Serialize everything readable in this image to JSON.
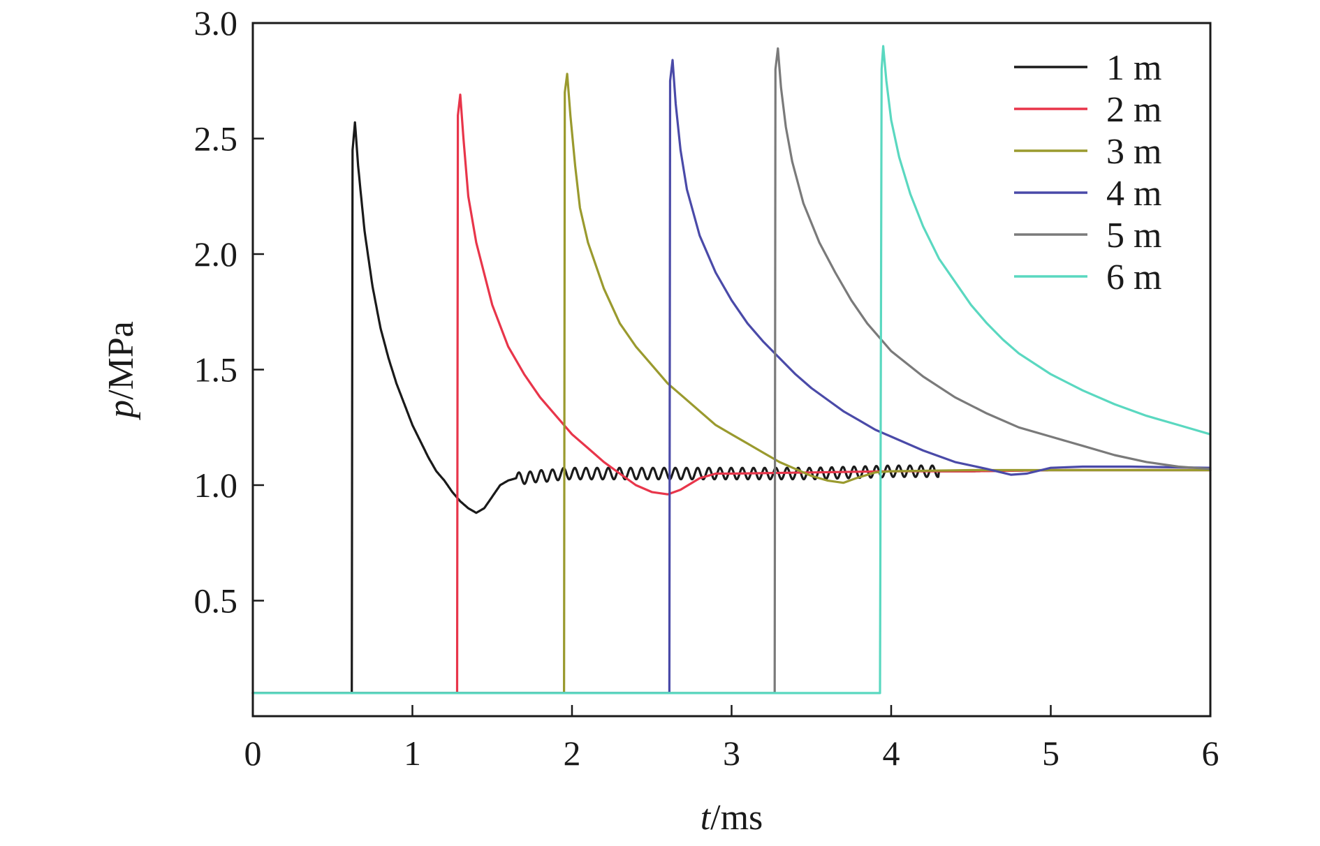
{
  "chart_data": {
    "type": "line",
    "xlabel": {
      "italic": "t",
      "rest": "/ms"
    },
    "ylabel": {
      "italic": "p",
      "rest": "/MPa"
    },
    "xlim": [
      0,
      6
    ],
    "ylim": [
      0,
      3.0
    ],
    "x_ticks": [
      0,
      1,
      2,
      3,
      4,
      5,
      6
    ],
    "x_tick_labels": [
      "0",
      "1",
      "2",
      "3",
      "4",
      "5",
      "6"
    ],
    "y_ticks": [
      0.5,
      1.0,
      1.5,
      2.0,
      2.5,
      3.0
    ],
    "y_tick_labels": [
      "0.5",
      "1.0",
      "1.5",
      "2.0",
      "2.5",
      "3.0"
    ],
    "grid": false,
    "legend_position": "top-right",
    "series": [
      {
        "name": "1 m",
        "color": "#1a1a1a",
        "points": [
          [
            0,
            0.1
          ],
          [
            0.62,
            0.1
          ],
          [
            0.625,
            2.45
          ],
          [
            0.64,
            2.57
          ],
          [
            0.66,
            2.38
          ],
          [
            0.7,
            2.1
          ],
          [
            0.75,
            1.86
          ],
          [
            0.8,
            1.68
          ],
          [
            0.85,
            1.55
          ],
          [
            0.9,
            1.44
          ],
          [
            0.95,
            1.35
          ],
          [
            1.0,
            1.26
          ],
          [
            1.05,
            1.19
          ],
          [
            1.1,
            1.12
          ],
          [
            1.15,
            1.06
          ],
          [
            1.2,
            1.02
          ],
          [
            1.25,
            0.97
          ],
          [
            1.3,
            0.93
          ],
          [
            1.35,
            0.9
          ],
          [
            1.4,
            0.88
          ],
          [
            1.45,
            0.9
          ],
          [
            1.5,
            0.95
          ],
          [
            1.55,
            1.0
          ],
          [
            1.6,
            1.02
          ],
          [
            1.65,
            1.03
          ],
          [
            1.7,
            1.03
          ],
          [
            1.75,
            1.035
          ],
          [
            1.8,
            1.04
          ],
          [
            1.85,
            1.04
          ],
          [
            1.9,
            1.045
          ],
          [
            1.95,
            1.05
          ],
          [
            2.0,
            1.05
          ],
          [
            2.1,
            1.05
          ],
          [
            2.2,
            1.05
          ],
          [
            2.5,
            1.05
          ],
          [
            3.0,
            1.05
          ],
          [
            3.5,
            1.05
          ],
          [
            4.0,
            1.06
          ],
          [
            4.5,
            1.06
          ],
          [
            5.0,
            1.065
          ],
          [
            5.5,
            1.065
          ],
          [
            6.0,
            1.065
          ]
        ],
        "wiggle": {
          "start": 1.65,
          "end": 4.3,
          "period": 0.07,
          "amplitude": 0.025
        }
      },
      {
        "name": "2 m",
        "color": "#e8354a",
        "points": [
          [
            0,
            0.1
          ],
          [
            1.28,
            0.1
          ],
          [
            1.285,
            2.6
          ],
          [
            1.3,
            2.69
          ],
          [
            1.32,
            2.5
          ],
          [
            1.35,
            2.25
          ],
          [
            1.4,
            2.05
          ],
          [
            1.5,
            1.78
          ],
          [
            1.6,
            1.6
          ],
          [
            1.7,
            1.48
          ],
          [
            1.8,
            1.38
          ],
          [
            1.9,
            1.3
          ],
          [
            2.0,
            1.22
          ],
          [
            2.1,
            1.16
          ],
          [
            2.2,
            1.1
          ],
          [
            2.3,
            1.05
          ],
          [
            2.4,
            1.0
          ],
          [
            2.5,
            0.97
          ],
          [
            2.6,
            0.96
          ],
          [
            2.68,
            0.98
          ],
          [
            2.8,
            1.03
          ],
          [
            2.9,
            1.05
          ],
          [
            3.0,
            1.05
          ],
          [
            3.5,
            1.055
          ],
          [
            4.0,
            1.06
          ],
          [
            4.5,
            1.06
          ],
          [
            5.0,
            1.065
          ],
          [
            5.5,
            1.065
          ],
          [
            6.0,
            1.065
          ]
        ]
      },
      {
        "name": "3 m",
        "color": "#9a9a2e",
        "points": [
          [
            0,
            0.1
          ],
          [
            1.95,
            0.1
          ],
          [
            1.955,
            2.7
          ],
          [
            1.97,
            2.78
          ],
          [
            1.99,
            2.6
          ],
          [
            2.02,
            2.38
          ],
          [
            2.05,
            2.2
          ],
          [
            2.1,
            2.05
          ],
          [
            2.2,
            1.85
          ],
          [
            2.3,
            1.7
          ],
          [
            2.4,
            1.6
          ],
          [
            2.5,
            1.52
          ],
          [
            2.6,
            1.44
          ],
          [
            2.7,
            1.38
          ],
          [
            2.8,
            1.32
          ],
          [
            2.9,
            1.26
          ],
          [
            3.0,
            1.22
          ],
          [
            3.1,
            1.18
          ],
          [
            3.2,
            1.14
          ],
          [
            3.3,
            1.1
          ],
          [
            3.4,
            1.07
          ],
          [
            3.5,
            1.04
          ],
          [
            3.6,
            1.02
          ],
          [
            3.7,
            1.01
          ],
          [
            3.78,
            1.03
          ],
          [
            3.9,
            1.055
          ],
          [
            4.0,
            1.06
          ],
          [
            4.5,
            1.065
          ],
          [
            5.0,
            1.065
          ],
          [
            5.5,
            1.065
          ],
          [
            6.0,
            1.065
          ]
        ]
      },
      {
        "name": "4 m",
        "color": "#4a4aa8",
        "points": [
          [
            0,
            0.1
          ],
          [
            2.61,
            0.1
          ],
          [
            2.615,
            2.75
          ],
          [
            2.63,
            2.84
          ],
          [
            2.65,
            2.65
          ],
          [
            2.68,
            2.45
          ],
          [
            2.72,
            2.28
          ],
          [
            2.8,
            2.08
          ],
          [
            2.9,
            1.92
          ],
          [
            3.0,
            1.8
          ],
          [
            3.1,
            1.7
          ],
          [
            3.2,
            1.62
          ],
          [
            3.3,
            1.55
          ],
          [
            3.4,
            1.48
          ],
          [
            3.5,
            1.42
          ],
          [
            3.6,
            1.37
          ],
          [
            3.7,
            1.32
          ],
          [
            3.8,
            1.28
          ],
          [
            3.9,
            1.24
          ],
          [
            4.0,
            1.21
          ],
          [
            4.2,
            1.15
          ],
          [
            4.4,
            1.1
          ],
          [
            4.6,
            1.07
          ],
          [
            4.75,
            1.045
          ],
          [
            4.85,
            1.05
          ],
          [
            5.0,
            1.075
          ],
          [
            5.2,
            1.08
          ],
          [
            5.5,
            1.08
          ],
          [
            6.0,
            1.075
          ]
        ]
      },
      {
        "name": "5 m",
        "color": "#7a7a7a",
        "points": [
          [
            0,
            0.1
          ],
          [
            3.27,
            0.1
          ],
          [
            3.275,
            2.8
          ],
          [
            3.29,
            2.89
          ],
          [
            3.31,
            2.72
          ],
          [
            3.34,
            2.55
          ],
          [
            3.38,
            2.4
          ],
          [
            3.45,
            2.22
          ],
          [
            3.55,
            2.05
          ],
          [
            3.65,
            1.92
          ],
          [
            3.75,
            1.8
          ],
          [
            3.85,
            1.7
          ],
          [
            4.0,
            1.58
          ],
          [
            4.2,
            1.47
          ],
          [
            4.4,
            1.38
          ],
          [
            4.6,
            1.31
          ],
          [
            4.8,
            1.25
          ],
          [
            5.0,
            1.21
          ],
          [
            5.2,
            1.17
          ],
          [
            5.4,
            1.13
          ],
          [
            5.6,
            1.1
          ],
          [
            5.8,
            1.08
          ],
          [
            6.0,
            1.07
          ]
        ]
      },
      {
        "name": "6 m",
        "color": "#5ad8c0",
        "points": [
          [
            0,
            0.1
          ],
          [
            3.93,
            0.1
          ],
          [
            3.94,
            2.8
          ],
          [
            3.95,
            2.9
          ],
          [
            3.97,
            2.75
          ],
          [
            4.0,
            2.58
          ],
          [
            4.05,
            2.42
          ],
          [
            4.12,
            2.26
          ],
          [
            4.2,
            2.12
          ],
          [
            4.3,
            1.98
          ],
          [
            4.4,
            1.88
          ],
          [
            4.5,
            1.78
          ],
          [
            4.6,
            1.7
          ],
          [
            4.7,
            1.63
          ],
          [
            4.8,
            1.57
          ],
          [
            5.0,
            1.48
          ],
          [
            5.2,
            1.41
          ],
          [
            5.4,
            1.35
          ],
          [
            5.6,
            1.3
          ],
          [
            5.8,
            1.26
          ],
          [
            6.0,
            1.22
          ]
        ]
      }
    ]
  }
}
